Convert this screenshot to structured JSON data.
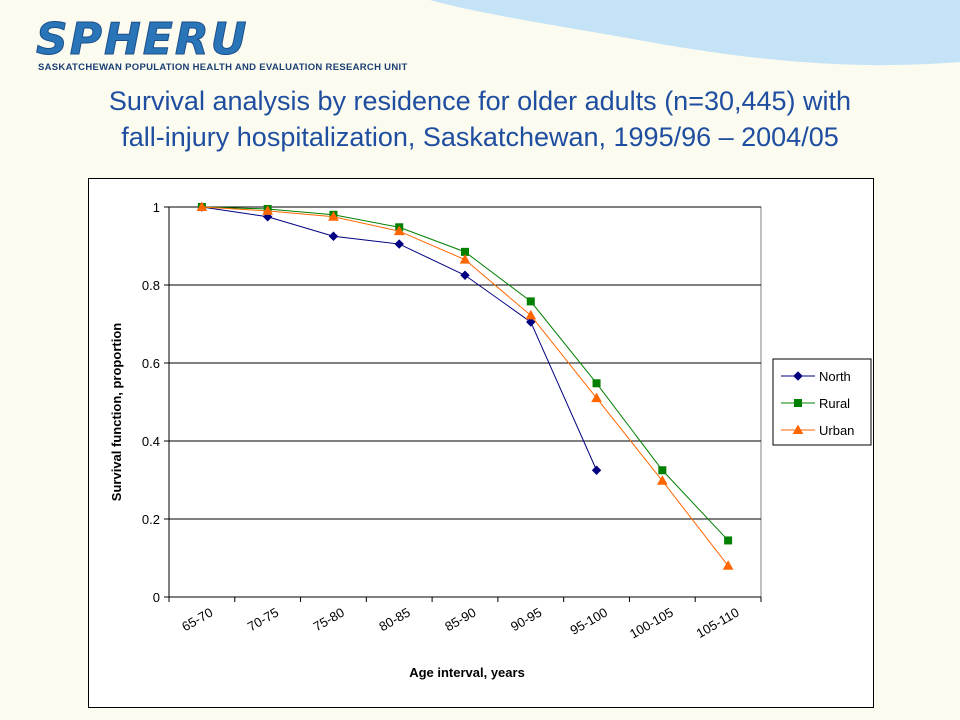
{
  "header": {
    "logo_text": "SPHERU",
    "logo_subtitle": "SASKATCHEWAN POPULATION HEALTH AND EVALUATION RESEARCH UNIT",
    "title_line1": "Survival analysis by residence for older adults (n=30,445) with",
    "title_line2": "fall-injury hospitalization,  Saskatchewan,  1995/96 – 2004/05",
    "wave_color": "#c4e3f7"
  },
  "chart_data": {
    "type": "line",
    "categories": [
      "65-70",
      "70-75",
      "75-80",
      "80-85",
      "85-90",
      "90-95",
      "95-100",
      "100-105",
      "105-110"
    ],
    "series": [
      {
        "name": "North",
        "color": "#000080",
        "marker": "diamond",
        "values": [
          1.0,
          0.975,
          0.925,
          0.905,
          0.825,
          0.705,
          0.325,
          null,
          null
        ]
      },
      {
        "name": "Rural",
        "color": "#008000",
        "marker": "square",
        "values": [
          1.0,
          0.995,
          0.98,
          0.948,
          0.885,
          0.758,
          0.548,
          0.325,
          0.145
        ]
      },
      {
        "name": "Urban",
        "color": "#ff6600",
        "marker": "triangle",
        "values": [
          1.0,
          0.99,
          0.975,
          0.938,
          0.865,
          0.722,
          0.51,
          0.298,
          0.08
        ]
      }
    ],
    "xlabel": "Age interval, years",
    "ylabel": "Survival function, proportion",
    "ylim": [
      0,
      1
    ],
    "yticks": [
      0,
      0.2,
      0.4,
      0.6,
      0.8,
      1
    ],
    "ytick_labels": [
      "0",
      "0.2",
      "0.4",
      "0.6",
      "0.8",
      "1"
    ],
    "grid": "horizontal",
    "legend": "right"
  }
}
